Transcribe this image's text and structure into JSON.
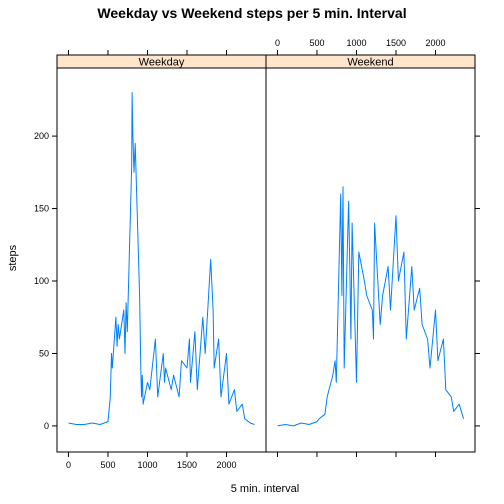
{
  "chart_data": {
    "type": "line",
    "title": "Weekday vs Weekend steps per 5 min. Interval",
    "xlabel": "5 min. interval",
    "ylabel": "steps",
    "xlim": [
      -145,
      2500
    ],
    "ylim": [
      -18,
      247
    ],
    "x_ticks": [
      0,
      500,
      1000,
      1500,
      2000
    ],
    "y_ticks": [
      0,
      50,
      100,
      150,
      200
    ],
    "layout": "two panels side by side, strip labels on top",
    "line_color": "#0080ff",
    "strip_color": "#ffe5cc",
    "series": [
      {
        "name": "Weekday",
        "x": [
          0,
          100,
          200,
          300,
          400,
          500,
          530,
          545,
          555,
          600,
          615,
          630,
          645,
          700,
          715,
          730,
          745,
          800,
          805,
          815,
          830,
          845,
          900,
          915,
          925,
          935,
          945,
          1000,
          1030,
          1100,
          1130,
          1200,
          1215,
          1230,
          1300,
          1330,
          1400,
          1430,
          1500,
          1530,
          1545,
          1600,
          1630,
          1700,
          1730,
          1800,
          1830,
          1845,
          1900,
          1930,
          2000,
          2030,
          2100,
          2130,
          2200,
          2230,
          2300,
          2355
        ],
        "y": [
          2,
          1,
          1,
          2,
          1,
          3,
          20,
          50,
          40,
          75,
          55,
          70,
          60,
          80,
          50,
          85,
          65,
          180,
          230,
          200,
          175,
          195,
          90,
          40,
          20,
          35,
          15,
          30,
          25,
          60,
          20,
          50,
          30,
          40,
          25,
          35,
          20,
          45,
          40,
          60,
          30,
          65,
          25,
          75,
          50,
          115,
          80,
          40,
          60,
          20,
          50,
          15,
          25,
          10,
          15,
          5,
          2,
          1
        ]
      },
      {
        "name": "Weekend",
        "x": [
          0,
          100,
          200,
          300,
          400,
          500,
          530,
          600,
          630,
          700,
          730,
          745,
          800,
          815,
          830,
          845,
          900,
          915,
          930,
          945,
          1000,
          1030,
          1100,
          1130,
          1200,
          1215,
          1230,
          1300,
          1330,
          1400,
          1430,
          1500,
          1530,
          1600,
          1630,
          1700,
          1730,
          1800,
          1830,
          1900,
          1930,
          2000,
          2030,
          2100,
          2130,
          2200,
          2230,
          2300,
          2355
        ],
        "y": [
          0,
          1,
          0,
          2,
          1,
          3,
          5,
          8,
          20,
          35,
          45,
          30,
          160,
          90,
          165,
          40,
          155,
          110,
          60,
          140,
          30,
          120,
          100,
          90,
          80,
          60,
          140,
          70,
          90,
          110,
          80,
          145,
          100,
          120,
          60,
          110,
          80,
          95,
          70,
          60,
          40,
          80,
          45,
          60,
          25,
          20,
          10,
          15,
          5
        ]
      }
    ]
  }
}
